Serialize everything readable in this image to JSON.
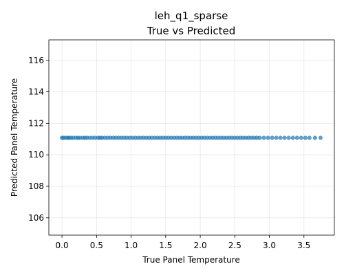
{
  "chart_data": {
    "type": "scatter",
    "title_lines": [
      "leh_q1_sparse",
      "True vs Predicted"
    ],
    "xlabel": "True Panel Temperature",
    "ylabel": "Predicted Panel Temperature",
    "xlim": [
      -0.19,
      3.94
    ],
    "ylim": [
      104.9,
      117.3
    ],
    "x_ticks": [
      0.0,
      0.5,
      1.0,
      1.5,
      2.0,
      2.5,
      3.0,
      3.5
    ],
    "x_tick_labels": [
      "0.0",
      "0.5",
      "1.0",
      "1.5",
      "2.0",
      "2.5",
      "3.0",
      "3.5"
    ],
    "y_ticks": [
      106,
      108,
      110,
      112,
      114,
      116
    ],
    "y_tick_labels": [
      "106",
      "108",
      "110",
      "112",
      "114",
      "116"
    ],
    "grid": true,
    "point_color": "#1f77b4",
    "point_alpha": 0.7,
    "series": [
      {
        "x": [
          0.0,
          0.02,
          0.05,
          0.08,
          0.1,
          0.13,
          0.16,
          0.2,
          0.23,
          0.26,
          0.3,
          0.33,
          0.36,
          0.4,
          0.44,
          0.48,
          0.52,
          0.55,
          0.58,
          0.62,
          0.66,
          0.7,
          0.74,
          0.78,
          0.82,
          0.86,
          0.9,
          0.94,
          0.98,
          1.02,
          1.06,
          1.1,
          1.14,
          1.18,
          1.22,
          1.26,
          1.3,
          1.34,
          1.38,
          1.42,
          1.46,
          1.5,
          1.54,
          1.58,
          1.62,
          1.66,
          1.7,
          1.74,
          1.78,
          1.82,
          1.86,
          1.9,
          1.94,
          1.98,
          2.02,
          2.06,
          2.1,
          2.14,
          2.18,
          2.22,
          2.26,
          2.3,
          2.34,
          2.38,
          2.42,
          2.46,
          2.5,
          2.54,
          2.58,
          2.62,
          2.66,
          2.7,
          2.74,
          2.78,
          2.82,
          2.86,
          2.92,
          2.98,
          3.04,
          3.1,
          3.16,
          3.22,
          3.28,
          3.34,
          3.4,
          3.46,
          3.52,
          3.58,
          3.66,
          3.74
        ],
        "y": [
          111.08,
          111.08,
          111.08,
          111.08,
          111.08,
          111.08,
          111.08,
          111.08,
          111.08,
          111.08,
          111.08,
          111.08,
          111.08,
          111.08,
          111.08,
          111.08,
          111.08,
          111.08,
          111.08,
          111.08,
          111.08,
          111.08,
          111.08,
          111.08,
          111.08,
          111.08,
          111.08,
          111.08,
          111.08,
          111.08,
          111.08,
          111.08,
          111.08,
          111.08,
          111.08,
          111.08,
          111.08,
          111.08,
          111.08,
          111.08,
          111.08,
          111.08,
          111.08,
          111.08,
          111.08,
          111.08,
          111.08,
          111.08,
          111.08,
          111.08,
          111.08,
          111.08,
          111.08,
          111.08,
          111.08,
          111.08,
          111.08,
          111.08,
          111.08,
          111.08,
          111.08,
          111.08,
          111.08,
          111.08,
          111.08,
          111.08,
          111.08,
          111.08,
          111.08,
          111.08,
          111.08,
          111.08,
          111.08,
          111.08,
          111.08,
          111.08,
          111.08,
          111.08,
          111.08,
          111.08,
          111.08,
          111.08,
          111.08,
          111.08,
          111.08,
          111.08,
          111.08,
          111.08,
          111.08,
          111.08
        ]
      }
    ]
  }
}
